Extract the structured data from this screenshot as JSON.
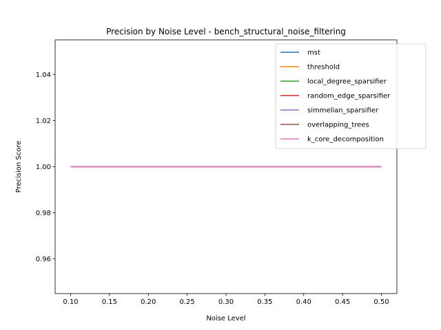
{
  "chart_data": {
    "type": "line",
    "title": "Precision by Noise Level - bench_structural_noise_filtering",
    "xlabel": "Noise Level",
    "ylabel": "Precision Score",
    "xlim": [
      0.08,
      0.52
    ],
    "ylim": [
      0.945,
      1.055
    ],
    "xticks": [
      0.1,
      0.15,
      0.2,
      0.25,
      0.3,
      0.35,
      0.4,
      0.45,
      0.5
    ],
    "xtick_labels": [
      "0.10",
      "0.15",
      "0.20",
      "0.25",
      "0.30",
      "0.35",
      "0.40",
      "0.45",
      "0.50"
    ],
    "yticks": [
      0.96,
      0.98,
      1.0,
      1.02,
      1.04
    ],
    "ytick_labels": [
      "0.96",
      "0.98",
      "1.00",
      "1.02",
      "1.04"
    ],
    "grid": false,
    "legend_position": "top-right",
    "x": [
      0.1,
      0.2,
      0.3,
      0.4,
      0.5
    ],
    "series": [
      {
        "name": "mst",
        "color": "#1f77b4",
        "values": [
          1.0,
          1.0,
          1.0,
          1.0,
          1.0
        ]
      },
      {
        "name": "threshold",
        "color": "#ff7f0e",
        "values": [
          1.0,
          1.0,
          1.0,
          1.0,
          1.0
        ]
      },
      {
        "name": "local_degree_sparsifier",
        "color": "#2ca02c",
        "values": [
          1.0,
          1.0,
          1.0,
          1.0,
          1.0
        ]
      },
      {
        "name": "random_edge_sparsifier",
        "color": "#d62728",
        "values": [
          1.0,
          1.0,
          1.0,
          1.0,
          1.0
        ]
      },
      {
        "name": "simmelian_sparsifier",
        "color": "#9467bd",
        "values": [
          1.0,
          1.0,
          1.0,
          1.0,
          1.0
        ]
      },
      {
        "name": "overlapping_trees",
        "color": "#8c564b",
        "values": [
          1.0,
          1.0,
          1.0,
          1.0,
          1.0
        ]
      },
      {
        "name": "k_core_decomposition",
        "color": "#e377c2",
        "values": [
          1.0,
          1.0,
          1.0,
          1.0,
          1.0
        ]
      }
    ]
  }
}
